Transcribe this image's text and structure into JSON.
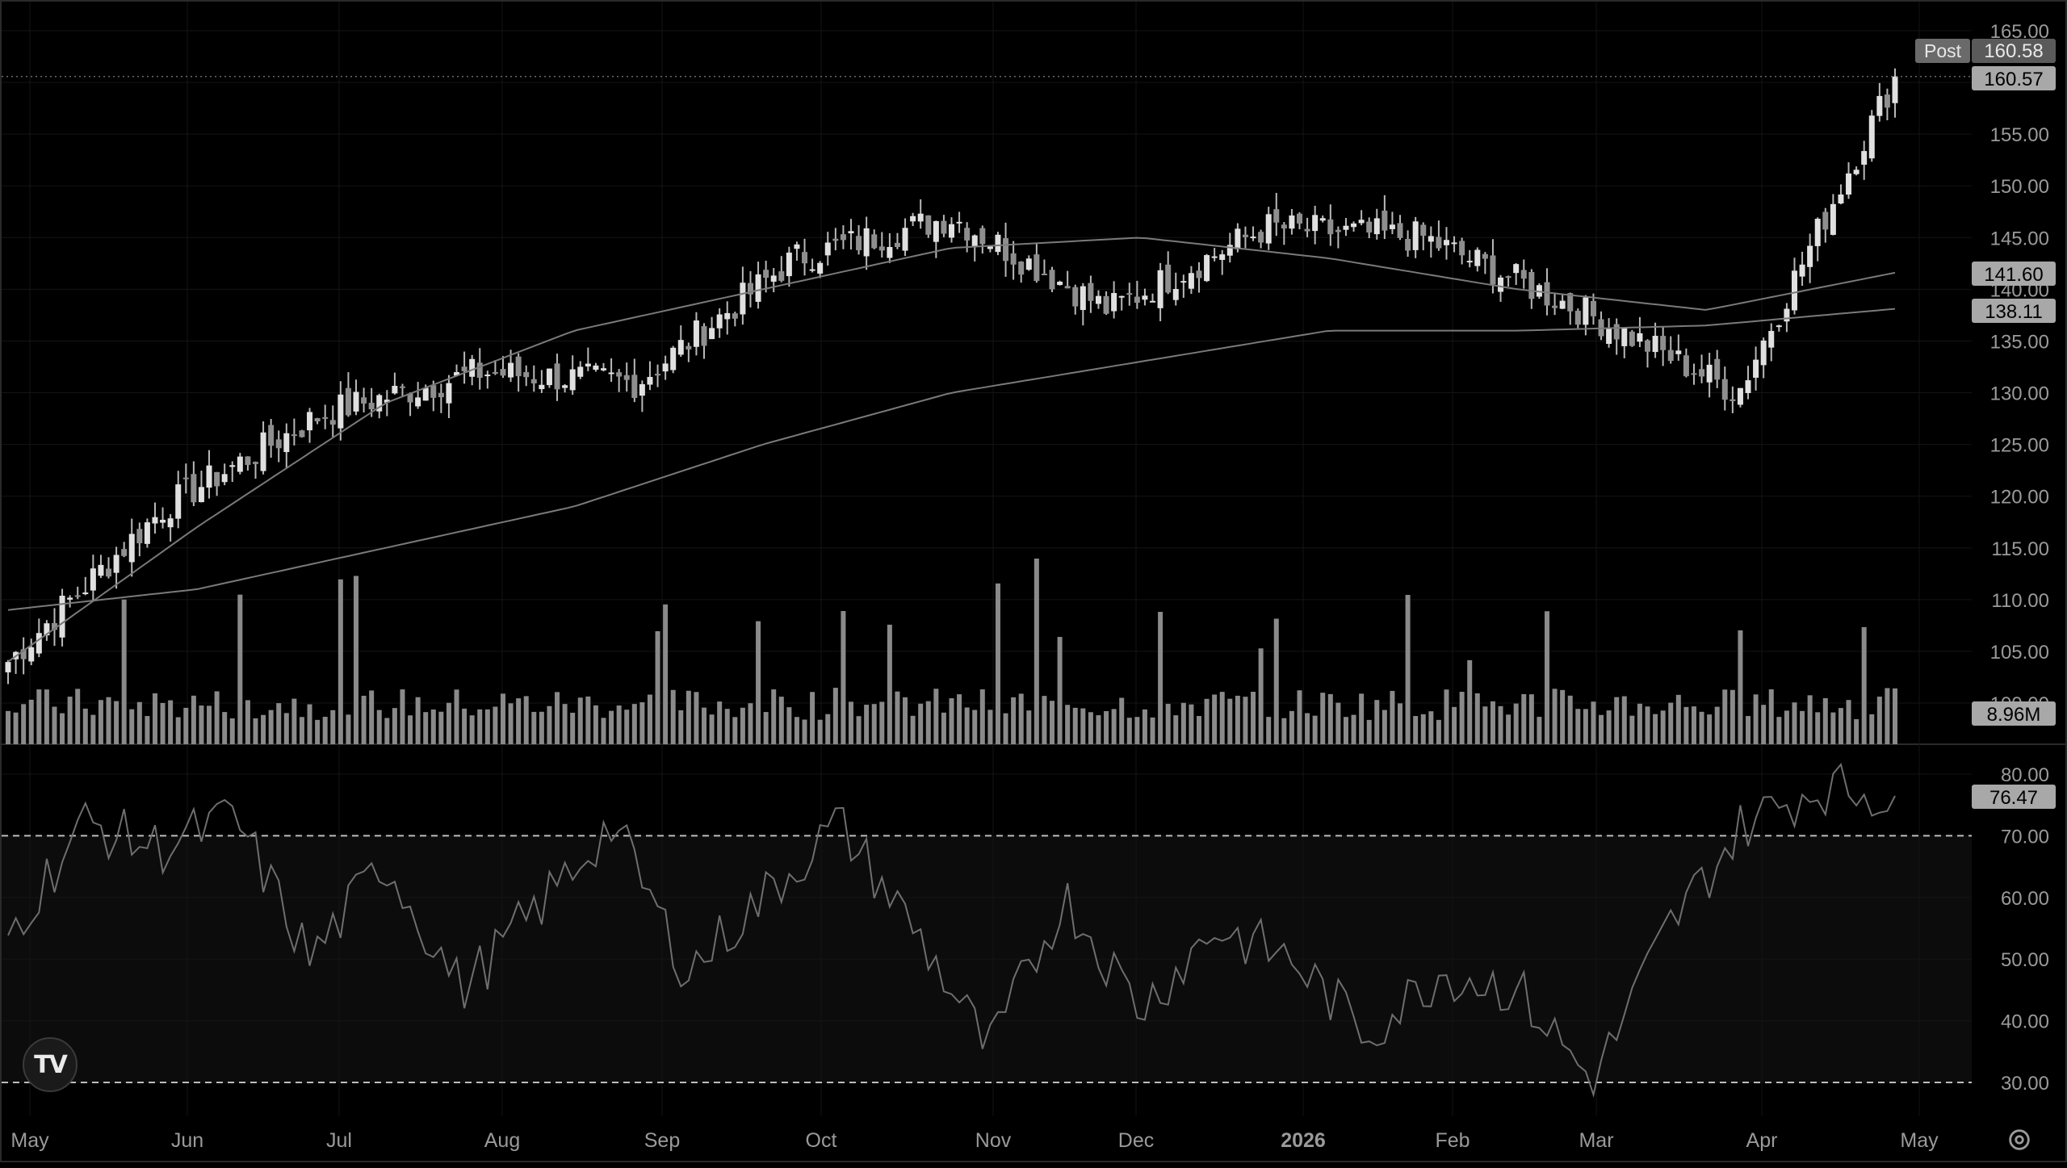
{
  "price_axis": {
    "ticks": [
      "165.00",
      "160.00",
      "155.00",
      "150.00",
      "145.00",
      "140.00",
      "135.00",
      "130.00",
      "125.00",
      "120.00",
      "115.00",
      "110.00",
      "105.00",
      "100.00"
    ],
    "tick_values": [
      165,
      160,
      155,
      150,
      145,
      140,
      135,
      130,
      125,
      120,
      115,
      110,
      105,
      100
    ]
  },
  "rsi_axis": {
    "ticks": [
      "80.00",
      "70.00",
      "60.00",
      "50.00",
      "40.00",
      "30.00"
    ],
    "tick_values": [
      80,
      70,
      60,
      50,
      40,
      30
    ],
    "upper_band": 70,
    "lower_band": 30
  },
  "labels": {
    "post_tag": "Post",
    "post_price": "160.58",
    "last_price": "160.57",
    "ma_fast_value": "141.60",
    "ma_slow_value": "138.11",
    "volume_value": "8.96M",
    "rsi_value": "76.47"
  },
  "time_axis": {
    "labels": [
      "May",
      "Jun",
      "Jul",
      "Aug",
      "Sep",
      "Oct",
      "Nov",
      "Dec",
      "2026",
      "Feb",
      "Mar",
      "Apr",
      "May"
    ],
    "bold_label": "2026"
  },
  "colors": {
    "background": "#000000",
    "candle": "#b8b8b8",
    "volume": "#8a8a8a",
    "line": "#7a7a7a",
    "axis_text": "#9a9a9a",
    "badge_bg": "#a8a8a8",
    "badge_text": "#000000",
    "grid": "#141414"
  },
  "icons": {
    "logo": "tradingview-logo-icon",
    "settings": "settings-gear-icon"
  },
  "chart_data": {
    "type": "line",
    "title": "",
    "price_anchors": {
      "dates": [
        "May",
        "Jun",
        "Jul",
        "Aug",
        "Sep",
        "Oct",
        "Nov",
        "Dec",
        "2026",
        "Feb",
        "Mar",
        "Apr",
        "May"
      ],
      "close_path": [
        104,
        119,
        128,
        132,
        131,
        143,
        147,
        138,
        146,
        145,
        138,
        130,
        160.57
      ]
    },
    "ma_fast_anchors": [
      104,
      117,
      129,
      136,
      140,
      144,
      145,
      143,
      140,
      138,
      141.6
    ],
    "ma_slow_anchors": [
      109,
      111,
      115,
      119,
      125,
      130,
      133,
      136,
      136,
      136.5,
      138.11
    ],
    "rsi_last": 76.47,
    "volume_last": "8.96M",
    "ylim": [
      97,
      166
    ],
    "rsi_ylim": [
      26,
      83
    ]
  }
}
